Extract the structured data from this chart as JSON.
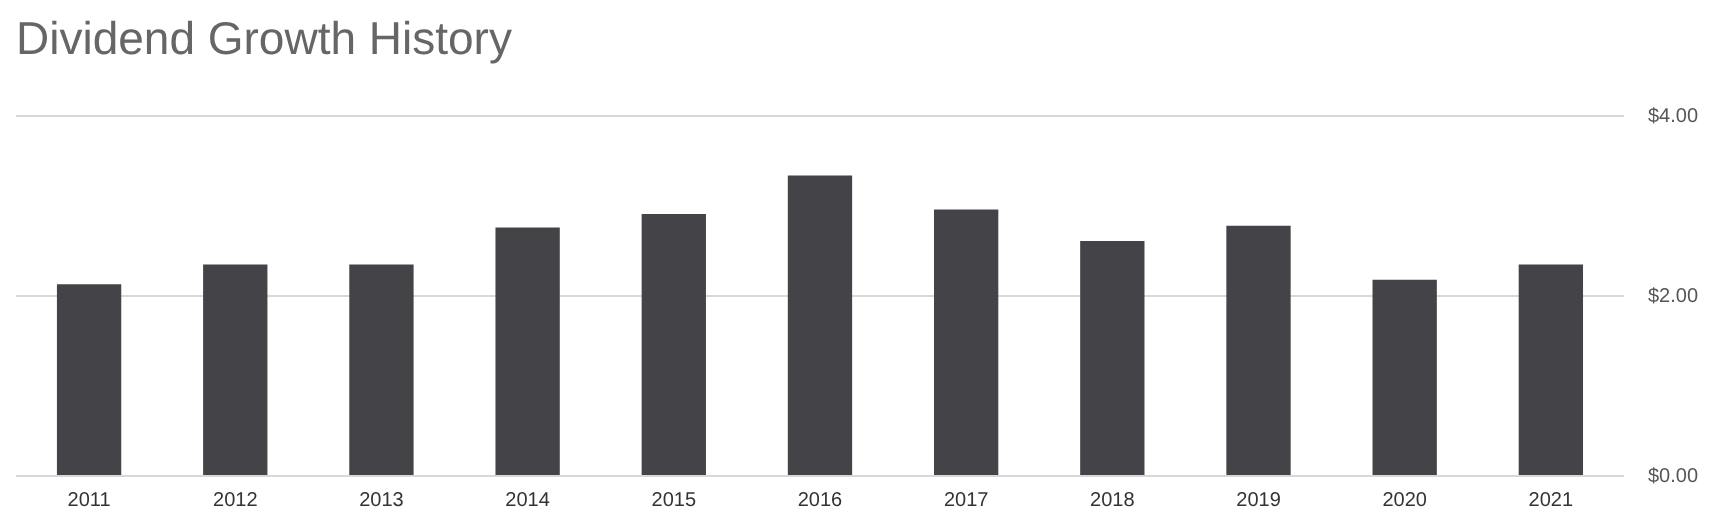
{
  "chart_data": {
    "type": "bar",
    "title": "Dividend Growth History",
    "categories": [
      "2011",
      "2012",
      "2013",
      "2014",
      "2015",
      "2016",
      "2017",
      "2018",
      "2019",
      "2020",
      "2021"
    ],
    "values": [
      2.13,
      2.35,
      2.35,
      2.76,
      2.91,
      3.34,
      2.96,
      2.61,
      2.78,
      2.18,
      2.35
    ],
    "color": "#444347",
    "ylim": [
      0,
      4
    ],
    "yticks": [
      {
        "value": 0,
        "label": "$0.00"
      },
      {
        "value": 2,
        "label": "$2.00"
      },
      {
        "value": 4,
        "label": "$4.00"
      }
    ],
    "grid": "y",
    "legend": false
  }
}
